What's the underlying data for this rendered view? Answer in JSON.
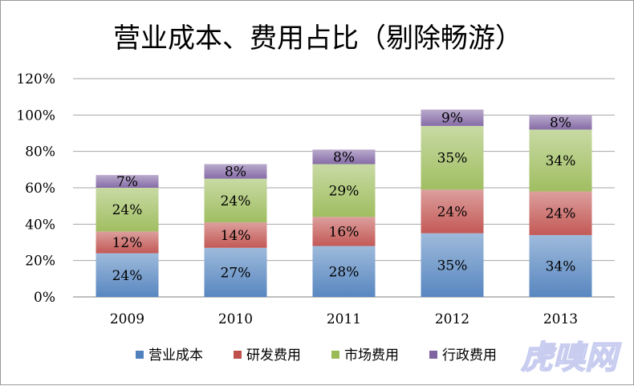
{
  "watermark": "虎嗅网",
  "chart_data": {
    "type": "bar",
    "stacked": true,
    "title": "营业成本、费用占比（剔除畅游）",
    "xlabel": "",
    "ylabel": "",
    "categories": [
      "2009",
      "2010",
      "2011",
      "2012",
      "2013"
    ],
    "ylim": [
      0,
      120
    ],
    "yticks": [
      "0%",
      "20%",
      "40%",
      "60%",
      "80%",
      "100%",
      "120%"
    ],
    "grid": true,
    "legend_position": "bottom",
    "series": [
      {
        "name": "营业成本",
        "color": "#4f81bd",
        "values": [
          24,
          27,
          28,
          35,
          34
        ],
        "labels": [
          "24%",
          "27%",
          "28%",
          "35%",
          "34%"
        ]
      },
      {
        "name": "研发费用",
        "color": "#c0504d",
        "values": [
          12,
          14,
          16,
          24,
          24
        ],
        "labels": [
          "12%",
          "14%",
          "16%",
          "24%",
          "24%"
        ]
      },
      {
        "name": "市场费用",
        "color": "#9bbb59",
        "values": [
          24,
          24,
          29,
          35,
          34
        ],
        "labels": [
          "24%",
          "24%",
          "29%",
          "35%",
          "34%"
        ]
      },
      {
        "name": "行政费用",
        "color": "#8064a2",
        "values": [
          7,
          8,
          8,
          9,
          8
        ],
        "labels": [
          "7%",
          "8%",
          "8%",
          "9%",
          "8%"
        ]
      }
    ]
  }
}
